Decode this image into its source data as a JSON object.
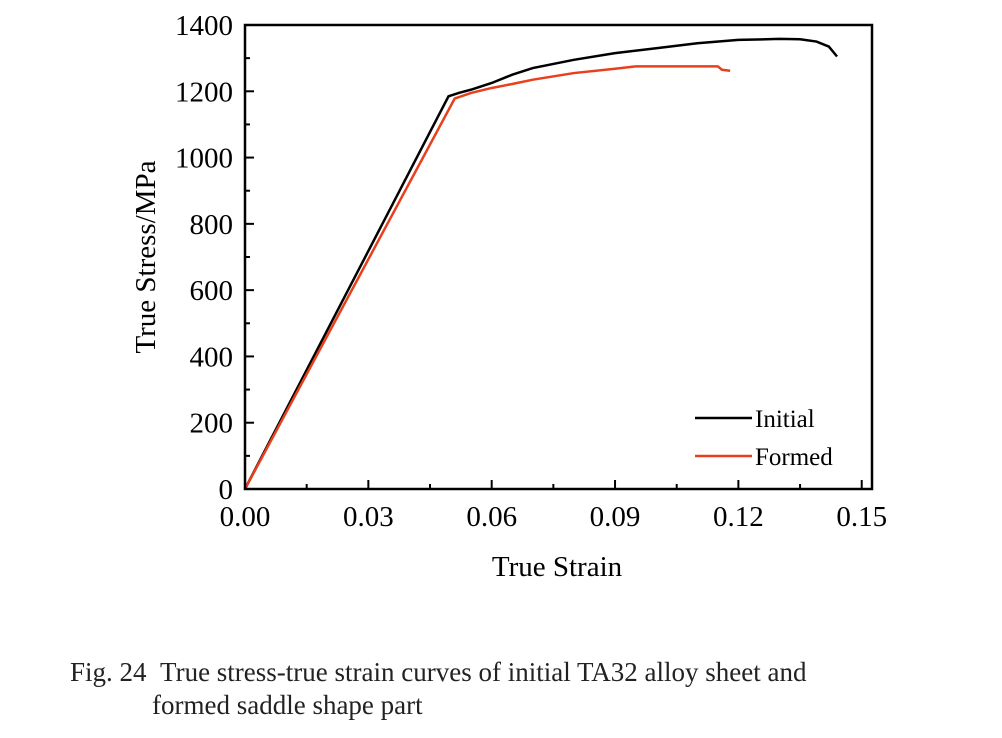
{
  "chart_data": {
    "type": "line",
    "xlabel": "True Strain",
    "ylabel": "True Stress/MPa",
    "xlim": [
      0,
      0.1525
    ],
    "ylim": [
      0,
      1400
    ],
    "xticks": [
      "0.00",
      "0.03",
      "0.06",
      "0.09",
      "0.12",
      "0.15"
    ],
    "xtick_values": [
      0,
      0.03,
      0.06,
      0.09,
      0.12,
      0.15
    ],
    "yticks": [
      "0",
      "200",
      "400",
      "600",
      "800",
      "1000",
      "1200",
      "1400"
    ],
    "ytick_values": [
      0,
      200,
      400,
      600,
      800,
      1000,
      1200,
      1400
    ],
    "grid": false,
    "legend_position": "bottom-right",
    "series": [
      {
        "name": "Initial",
        "color": "#000000",
        "x": [
          0,
          0.0495,
          0.052,
          0.055,
          0.06,
          0.065,
          0.07,
          0.08,
          0.09,
          0.1,
          0.11,
          0.12,
          0.13,
          0.135,
          0.139,
          0.142,
          0.144
        ],
        "y": [
          0,
          1185,
          1195,
          1205,
          1225,
          1250,
          1270,
          1295,
          1315,
          1330,
          1345,
          1355,
          1358,
          1357,
          1350,
          1335,
          1305
        ]
      },
      {
        "name": "Formed",
        "color": "#e8401c",
        "x": [
          0,
          0.051,
          0.055,
          0.06,
          0.065,
          0.07,
          0.08,
          0.09,
          0.095,
          0.115,
          0.116,
          0.118
        ],
        "y": [
          0,
          1178,
          1195,
          1210,
          1222,
          1235,
          1255,
          1268,
          1275,
          1275,
          1265,
          1262
        ]
      }
    ]
  },
  "caption": {
    "label": "Fig. 24",
    "line1": "True stress-true strain curves of initial TA32 alloy sheet and",
    "line2": "formed saddle shape part"
  }
}
